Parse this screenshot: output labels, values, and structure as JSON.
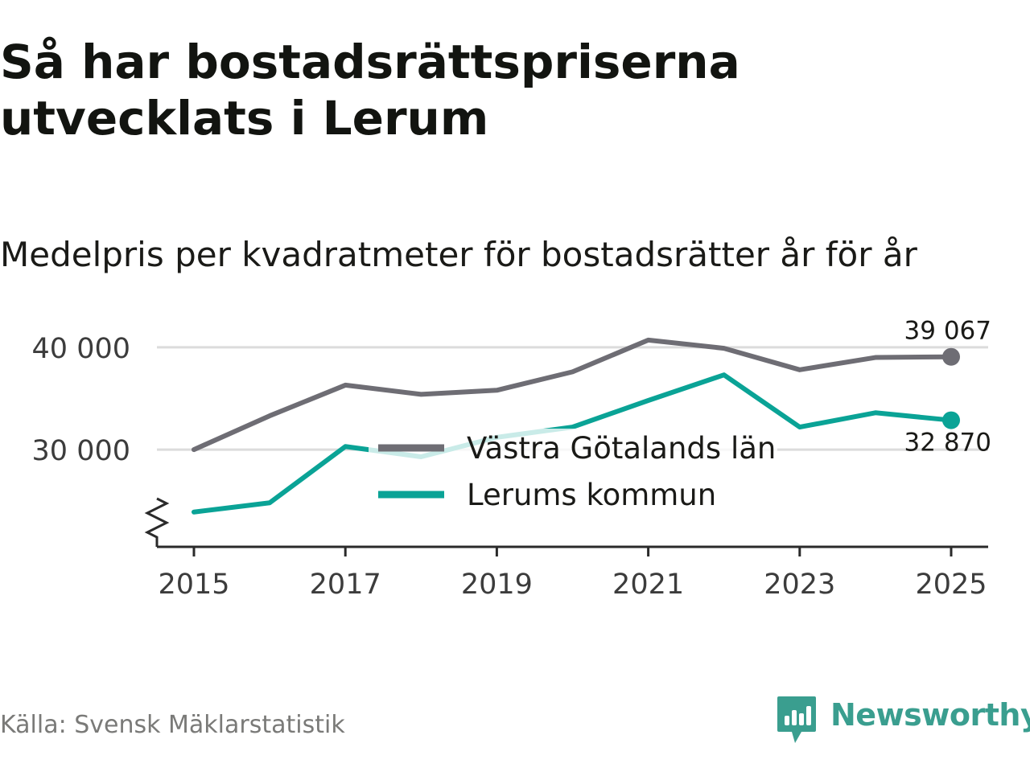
{
  "header": {
    "title": "Så har bostadsrättspriserna utvecklats i Lerum",
    "subtitle": "Medelpris per kvadratmeter för bostadsrätter år för år"
  },
  "chart_data": {
    "type": "line",
    "x": [
      2015,
      2016,
      2017,
      2018,
      2019,
      2020,
      2021,
      2022,
      2023,
      2024,
      2025
    ],
    "series": [
      {
        "name": "Västra Götalands län",
        "color": "#6e6d74",
        "values": [
          30000,
          33300,
          36300,
          35400,
          35800,
          37600,
          40700,
          39900,
          37800,
          39000,
          39067
        ],
        "end_label": "39 067"
      },
      {
        "name": "Lerums kommun",
        "color": "#0aa396",
        "values": [
          23900,
          24800,
          30300,
          29300,
          31200,
          32200,
          34800,
          37300,
          32200,
          33600,
          32870
        ],
        "end_label": "32 870"
      }
    ],
    "x_ticks": [
      "2015",
      "2017",
      "2019",
      "2021",
      "2023",
      "2025"
    ],
    "y_ticks": [
      {
        "value": 30000,
        "label": "30 000"
      },
      {
        "value": 40000,
        "label": "40 000"
      }
    ],
    "ylim": [
      20500,
      42500
    ],
    "axis_break": true,
    "grid": true,
    "legend": "center"
  },
  "footer": {
    "source": "Källa: Svensk Mäklarstatistik",
    "brand": "Newsworthy",
    "brand_color": "#3a9e8f"
  }
}
